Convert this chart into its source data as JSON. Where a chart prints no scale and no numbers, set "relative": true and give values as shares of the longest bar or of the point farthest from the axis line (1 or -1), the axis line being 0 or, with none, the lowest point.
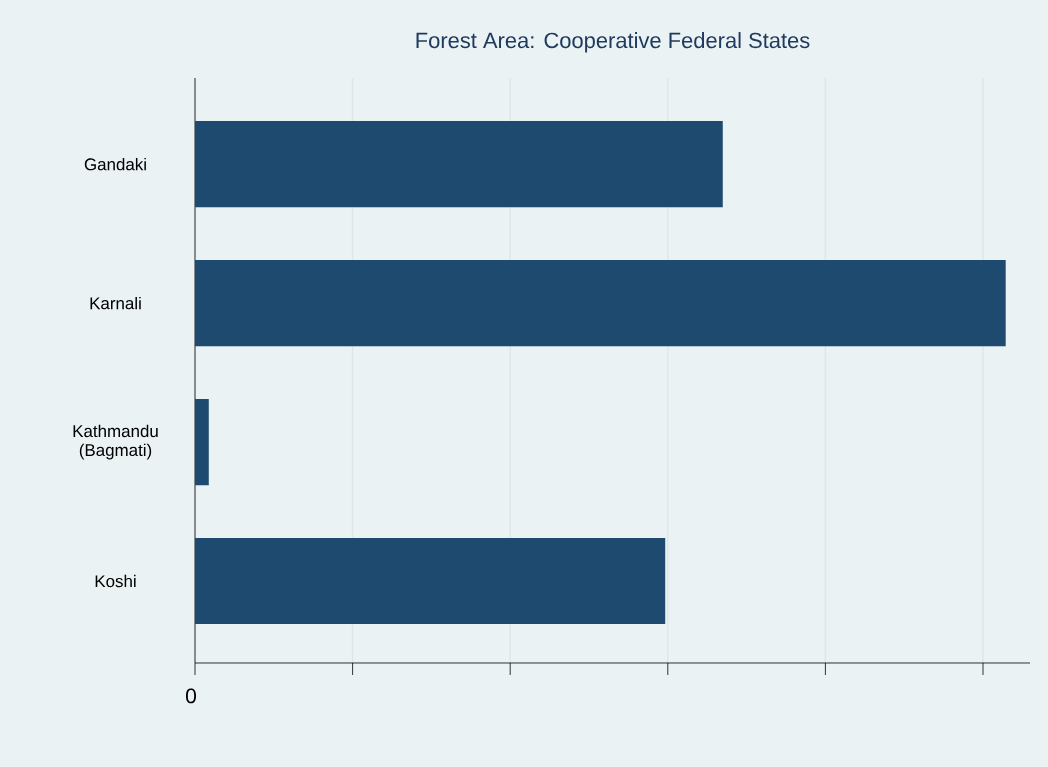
{
  "chart_data": {
    "type": "bar",
    "orientation": "horizontal",
    "relative": true,
    "title": "Forest Area: Cooperative Federal States",
    "categories": [
      "Gandaki",
      "Karnali",
      "Kathmandu (Bagmati)",
      "Koshi"
    ],
    "values": [
      0.651,
      1,
      0.017,
      0.58
    ],
    "color": "#1f4a70",
    "grid": "x",
    "annotations": [
      "0"
    ]
  }
}
